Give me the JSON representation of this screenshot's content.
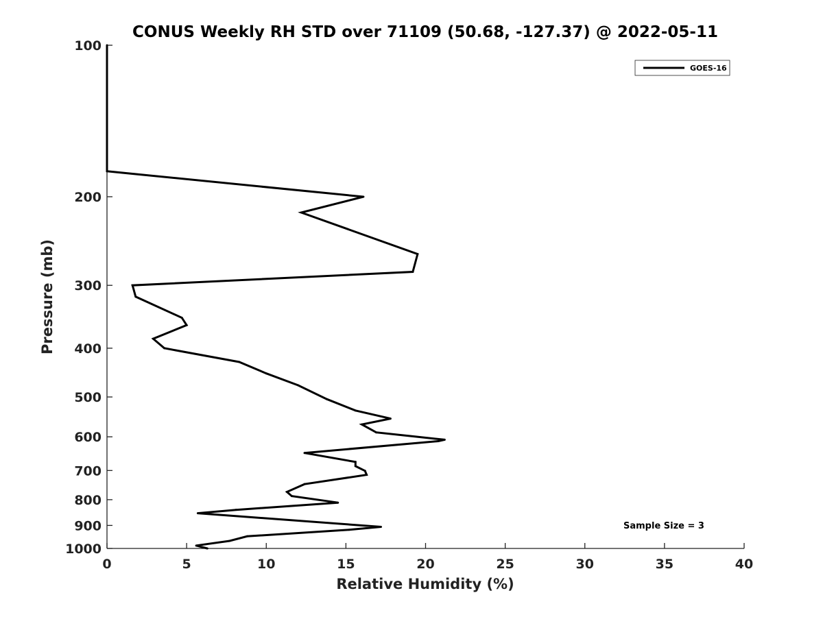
{
  "chart_data": {
    "type": "line",
    "title": "CONUS Weekly RH STD over 71109 (50.68, -127.37) @ 2022-05-11",
    "xlabel": "Relative Humidity (%)",
    "ylabel": "Pressure (mb)",
    "xlim": [
      0,
      40
    ],
    "ylim": [
      100,
      1000
    ],
    "yscale": "log",
    "y_reversed": true,
    "x_ticks": [
      "0",
      "5",
      "10",
      "15",
      "20",
      "25",
      "30",
      "35",
      "40"
    ],
    "y_ticks": [
      "100",
      "200",
      "300",
      "400",
      "500",
      "600",
      "700",
      "800",
      "900",
      "1000"
    ],
    "grid": false,
    "legend": {
      "location": "top-right",
      "entries": [
        "GOES-16"
      ]
    },
    "annotation": "Sample Size = 3",
    "series": [
      {
        "name": "GOES-16",
        "color": "#000000",
        "x": [
          0,
          0,
          0,
          16.1,
          12.2,
          19.5,
          19.2,
          1.6,
          1.8,
          4.7,
          5.0,
          2.9,
          3.6,
          8.3,
          10.0,
          12.0,
          13.8,
          15.6,
          17.8,
          16.0,
          16.9,
          21.2,
          20.8,
          12.4,
          15.6,
          15.6,
          16.2,
          16.3,
          12.4,
          11.3,
          11.6,
          14.5,
          8.1,
          5.7,
          17.2,
          15.2,
          8.8,
          7.7,
          5.6,
          6.3
        ],
        "y": [
          100,
          150,
          178,
          200,
          215,
          260,
          282,
          300,
          316,
          348,
          360,
          383,
          400,
          426,
          449,
          474,
          505,
          532,
          552,
          567,
          588,
          608,
          612,
          646,
          673,
          686,
          701,
          714,
          745,
          772,
          787,
          811,
          838,
          851,
          906,
          918,
          946,
          966,
          987,
          1000
        ]
      }
    ]
  }
}
